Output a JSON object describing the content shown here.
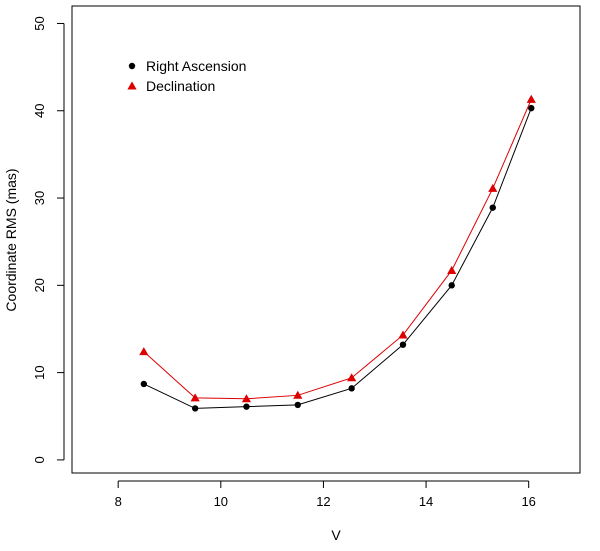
{
  "chart_data": {
    "type": "line",
    "title": "",
    "xlabel": "V",
    "ylabel": "Coordinate RMS (mas)",
    "xlim": [
      7.1,
      17.0
    ],
    "ylim": [
      -1.5,
      52
    ],
    "xticks": [
      8,
      10,
      12,
      14,
      16
    ],
    "yticks": [
      0,
      10,
      20,
      30,
      40,
      50
    ],
    "legend_position": "top-left",
    "series": [
      {
        "name": "Right Ascension",
        "marker": "circle",
        "color": "#000000",
        "x": [
          8.5,
          9.5,
          10.5,
          11.5,
          12.55,
          13.55,
          14.5,
          15.3,
          16.05
        ],
        "y": [
          8.7,
          5.9,
          6.1,
          6.3,
          8.2,
          13.2,
          20.0,
          28.9,
          40.3
        ]
      },
      {
        "name": "Declination",
        "marker": "triangle",
        "color": "#dd0000",
        "x": [
          8.5,
          9.5,
          10.5,
          11.5,
          12.55,
          13.55,
          14.5,
          15.3,
          16.05
        ],
        "y": [
          12.4,
          7.1,
          7.0,
          7.4,
          9.4,
          14.3,
          21.7,
          31.1,
          41.3
        ]
      }
    ]
  }
}
